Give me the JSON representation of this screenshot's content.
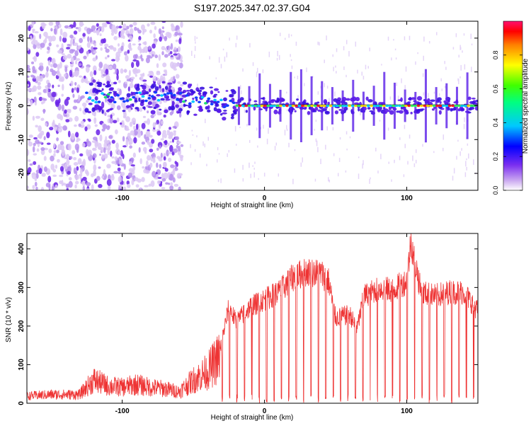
{
  "title": "S197.2025.347.02.37.G04",
  "chart_data": [
    {
      "type": "heatmap",
      "xlabel": "Height of straight line (km)",
      "ylabel": "Frequency (Hz)",
      "xlim": [
        -167,
        150
      ],
      "ylim": [
        -25,
        25
      ],
      "x_ticks": [
        -100,
        0,
        100
      ],
      "y_ticks": [
        -20,
        -10,
        0,
        10,
        20
      ],
      "colorbar": {
        "label": "Normalized spectral amplitude",
        "range": [
          0,
          1
        ],
        "ticks": [
          "0.0",
          "0.2",
          "0.4",
          "0.6",
          "0.8"
        ]
      },
      "features": [
        {
          "name": "diffuse noise",
          "x_range": [
            -167,
            -58
          ],
          "freq_range": [
            -25,
            25
          ]
        },
        {
          "name": "signal trace",
          "x_range": [
            -125,
            150
          ],
          "center_freq_start": 2.5,
          "center_freq_end": 0
        }
      ]
    },
    {
      "type": "line",
      "xlabel": "Height of straight line (km)",
      "ylabel": "SNR (10 * v/v)",
      "xlim": [
        -167,
        150
      ],
      "ylim": [
        0,
        440
      ],
      "x_ticks": [
        -100,
        0,
        100
      ],
      "y_ticks": [
        0,
        100,
        200,
        300,
        400
      ],
      "color": "#ee3333",
      "series": [
        {
          "name": "SNR",
          "x": [
            -167,
            -150,
            -130,
            -120,
            -110,
            -100,
            -90,
            -80,
            -70,
            -60,
            -50,
            -40,
            -30,
            -25,
            -20,
            -10,
            0,
            10,
            15,
            20,
            30,
            40,
            45,
            50,
            60,
            65,
            70,
            80,
            90,
            100,
            103,
            110,
            120,
            130,
            140,
            150
          ],
          "values": [
            25,
            30,
            30,
            80,
            60,
            55,
            65,
            55,
            50,
            40,
            80,
            110,
            170,
            260,
            220,
            260,
            280,
            300,
            320,
            340,
            355,
            350,
            330,
            230,
            240,
            200,
            290,
            310,
            305,
            330,
            440,
            300,
            290,
            300,
            300,
            250
          ]
        }
      ]
    }
  ]
}
